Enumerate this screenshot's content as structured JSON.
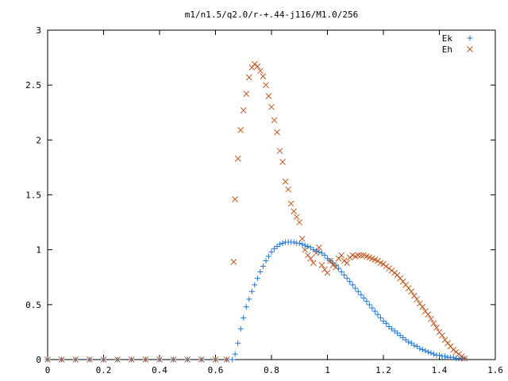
{
  "chart_data": {
    "type": "scatter",
    "title": "m1/n1.5/q2.0/r-+.44-j116/M1.0/256",
    "xlabel": "",
    "ylabel": "",
    "xlim": [
      0,
      1.6
    ],
    "ylim": [
      0,
      3
    ],
    "xticks": [
      "0",
      "0.2",
      "0.4",
      "0.6",
      "0.8",
      "1",
      "1.2",
      "1.4",
      "1.6"
    ],
    "yticks": [
      "0",
      "0.5",
      "1",
      "1.5",
      "2",
      "2.5",
      "3"
    ],
    "grid": false,
    "legend_position": "top-right",
    "series": [
      {
        "name": "Ek",
        "marker": "plus",
        "color": "#1f77d4",
        "x": [
          0.0,
          0.05,
          0.1,
          0.15,
          0.2,
          0.25,
          0.3,
          0.35,
          0.4,
          0.45,
          0.5,
          0.55,
          0.6,
          0.64,
          0.66,
          0.67,
          0.68,
          0.69,
          0.7,
          0.71,
          0.72,
          0.73,
          0.74,
          0.75,
          0.76,
          0.77,
          0.78,
          0.79,
          0.8,
          0.81,
          0.82,
          0.83,
          0.84,
          0.85,
          0.86,
          0.87,
          0.88,
          0.89,
          0.9,
          0.91,
          0.92,
          0.93,
          0.94,
          0.95,
          0.96,
          0.97,
          0.98,
          0.99,
          1.0,
          1.01,
          1.02,
          1.03,
          1.04,
          1.05,
          1.06,
          1.07,
          1.08,
          1.09,
          1.1,
          1.11,
          1.12,
          1.13,
          1.14,
          1.15,
          1.16,
          1.17,
          1.18,
          1.19,
          1.2,
          1.21,
          1.22,
          1.23,
          1.24,
          1.25,
          1.26,
          1.27,
          1.28,
          1.29,
          1.3,
          1.31,
          1.32,
          1.33,
          1.34,
          1.35,
          1.36,
          1.37,
          1.38,
          1.39,
          1.4,
          1.41,
          1.42,
          1.43,
          1.44,
          1.45,
          1.46,
          1.47,
          1.48,
          1.49
        ],
        "y": [
          0,
          0,
          0,
          0,
          0,
          0,
          0,
          0,
          0,
          0,
          0,
          0,
          0,
          0,
          0,
          0.05,
          0.15,
          0.28,
          0.38,
          0.48,
          0.55,
          0.62,
          0.68,
          0.74,
          0.8,
          0.85,
          0.9,
          0.94,
          0.98,
          1.01,
          1.03,
          1.05,
          1.06,
          1.07,
          1.07,
          1.07,
          1.07,
          1.06,
          1.06,
          1.05,
          1.04,
          1.03,
          1.02,
          1.0,
          0.99,
          0.98,
          0.97,
          0.95,
          0.92,
          0.9,
          0.88,
          0.86,
          0.83,
          0.8,
          0.77,
          0.74,
          0.71,
          0.68,
          0.65,
          0.62,
          0.59,
          0.56,
          0.53,
          0.5,
          0.47,
          0.44,
          0.41,
          0.38,
          0.35,
          0.33,
          0.3,
          0.28,
          0.26,
          0.24,
          0.22,
          0.2,
          0.18,
          0.16,
          0.15,
          0.13,
          0.12,
          0.1,
          0.09,
          0.08,
          0.07,
          0.06,
          0.05,
          0.04,
          0.04,
          0.03,
          0.03,
          0.02,
          0.02,
          0.02,
          0.01,
          0.01,
          0.01,
          0.01
        ]
      },
      {
        "name": "Eh",
        "marker": "cross",
        "color": "#c0561e",
        "x": [
          0.0,
          0.05,
          0.1,
          0.15,
          0.2,
          0.25,
          0.3,
          0.35,
          0.4,
          0.45,
          0.5,
          0.55,
          0.6,
          0.64,
          0.665,
          0.67,
          0.68,
          0.69,
          0.7,
          0.71,
          0.72,
          0.73,
          0.74,
          0.75,
          0.76,
          0.77,
          0.78,
          0.79,
          0.8,
          0.81,
          0.82,
          0.83,
          0.84,
          0.85,
          0.86,
          0.87,
          0.88,
          0.89,
          0.9,
          0.91,
          0.92,
          0.93,
          0.94,
          0.95,
          0.96,
          0.97,
          0.98,
          0.99,
          1.0,
          1.01,
          1.02,
          1.03,
          1.04,
          1.05,
          1.06,
          1.07,
          1.08,
          1.09,
          1.1,
          1.11,
          1.12,
          1.13,
          1.14,
          1.15,
          1.16,
          1.17,
          1.18,
          1.19,
          1.2,
          1.21,
          1.22,
          1.23,
          1.24,
          1.25,
          1.26,
          1.27,
          1.28,
          1.29,
          1.3,
          1.31,
          1.32,
          1.33,
          1.34,
          1.35,
          1.36,
          1.37,
          1.38,
          1.39,
          1.4,
          1.41,
          1.42,
          1.43,
          1.44,
          1.45,
          1.46,
          1.47,
          1.48,
          1.49
        ],
        "y": [
          0,
          0,
          0,
          0,
          0,
          0,
          0,
          0,
          0,
          0,
          0,
          0,
          0,
          0,
          0.89,
          1.46,
          1.83,
          2.09,
          2.27,
          2.42,
          2.57,
          2.66,
          2.69,
          2.67,
          2.63,
          2.58,
          2.5,
          2.4,
          2.3,
          2.18,
          2.07,
          1.9,
          1.8,
          1.62,
          1.55,
          1.42,
          1.35,
          1.3,
          1.25,
          1.1,
          1.0,
          0.95,
          0.92,
          0.88,
          0.97,
          1.02,
          0.86,
          0.82,
          0.79,
          0.9,
          0.86,
          0.84,
          0.92,
          0.95,
          0.9,
          0.88,
          0.93,
          0.95,
          0.94,
          0.95,
          0.95,
          0.95,
          0.94,
          0.93,
          0.92,
          0.91,
          0.9,
          0.88,
          0.87,
          0.85,
          0.83,
          0.81,
          0.79,
          0.77,
          0.74,
          0.71,
          0.68,
          0.65,
          0.62,
          0.58,
          0.55,
          0.51,
          0.48,
          0.44,
          0.41,
          0.37,
          0.33,
          0.29,
          0.25,
          0.22,
          0.18,
          0.15,
          0.12,
          0.09,
          0.07,
          0.05,
          0.03,
          0.01
        ]
      }
    ]
  }
}
